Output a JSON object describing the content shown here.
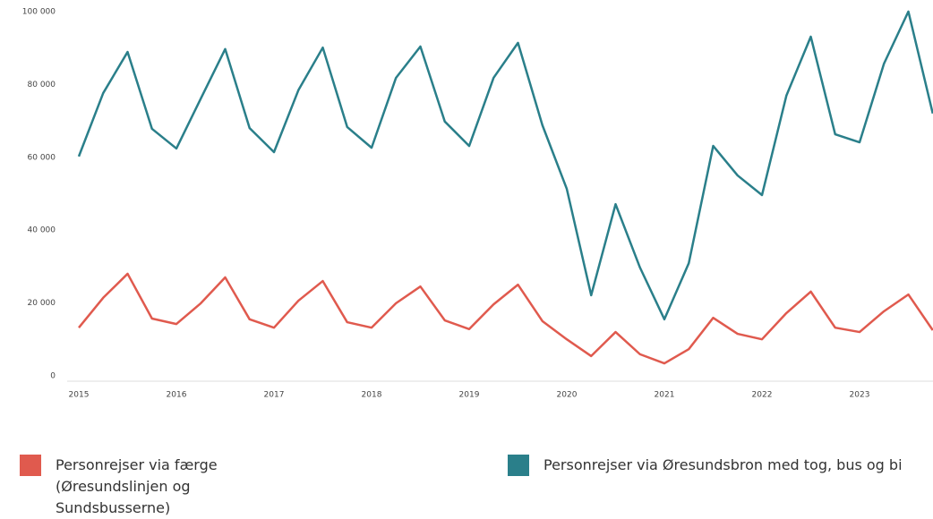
{
  "chart_data": {
    "type": "line",
    "categories": [
      "2015",
      null,
      null,
      null,
      "2016",
      null,
      null,
      null,
      "2017",
      null,
      null,
      null,
      "2018",
      null,
      null,
      null,
      "2019",
      null,
      null,
      null,
      "2020",
      null,
      null,
      null,
      "2021",
      null,
      null,
      null,
      "2022",
      null,
      null,
      null,
      "2023",
      null,
      null,
      null
    ],
    "series": [
      {
        "name": "Personrejser via færge (Øresundslinjen og Sundsbusserne)",
        "color": "#e05a4e",
        "values": [
          14700,
          22900,
          29500,
          17200,
          15700,
          21400,
          28500,
          17000,
          14700,
          22100,
          27500,
          16200,
          14700,
          21400,
          26000,
          16700,
          14300,
          21100,
          26500,
          16500,
          11500,
          6900,
          13500,
          7400,
          4900,
          8800,
          17400,
          13000,
          11500,
          18700,
          24600,
          14700,
          13500,
          19200,
          23800,
          14000
        ]
      },
      {
        "name": "Personrejser via Øresundsbron med tog, bus og bi",
        "color": "#2a7f8a",
        "values": [
          61700,
          79100,
          90400,
          69300,
          63900,
          77600,
          91200,
          69500,
          62900,
          79900,
          91600,
          69800,
          64100,
          83300,
          91900,
          71300,
          64600,
          83300,
          92900,
          70300,
          52800,
          23600,
          48600,
          31200,
          17000,
          32400,
          64600,
          56500,
          51100,
          78400,
          94600,
          67800,
          65600,
          87200,
          101500,
          73500
        ]
      }
    ],
    "ylim": [
      0,
      100000
    ],
    "yticks": [
      0,
      {
        "value": 20000,
        "label": "20 000"
      },
      {
        "value": 40000,
        "label": "40 000"
      },
      {
        "value": 60000,
        "label": "60 000"
      },
      {
        "value": 80000,
        "label": "80 000"
      },
      {
        "value": 100000,
        "label": "100 000"
      }
    ]
  }
}
